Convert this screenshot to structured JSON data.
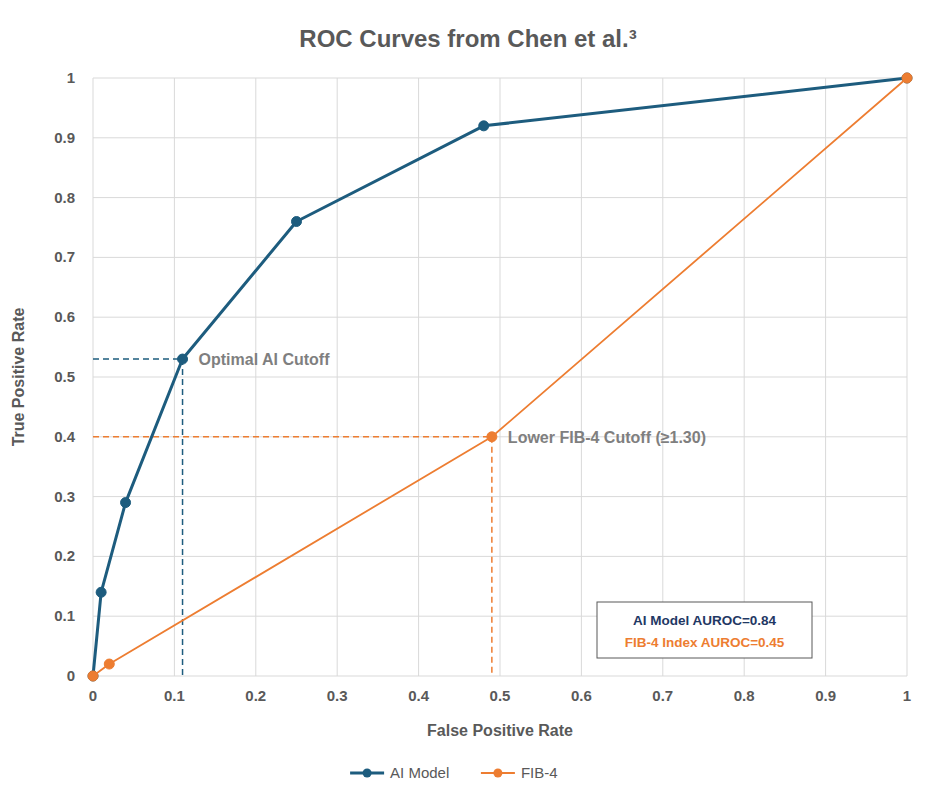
{
  "chart_data": {
    "type": "line",
    "title": "ROC Curves from Chen et al.³",
    "x_label": "False Positive Rate",
    "y_label": "True Positive Rate",
    "xlim": [
      0,
      1
    ],
    "ylim": [
      0,
      1
    ],
    "xticks": [
      0,
      0.1,
      0.2,
      0.3,
      0.4,
      0.5,
      0.6,
      0.7,
      0.8,
      0.9,
      1
    ],
    "yticks": [
      0,
      0.1,
      0.2,
      0.3,
      0.4,
      0.5,
      0.6,
      0.7,
      0.8,
      0.9,
      1
    ],
    "grid": true,
    "legend": "bottom",
    "series": [
      {
        "name": "AI Model",
        "color": "#1d5c7e",
        "marker": "circle",
        "x": [
          0,
          0.01,
          0.04,
          0.11,
          0.25,
          0.48,
          1
        ],
        "values": [
          0,
          0.14,
          0.29,
          0.53,
          0.76,
          0.92,
          1
        ]
      },
      {
        "name": "FIB-4",
        "color": "#ed7d31",
        "marker": "circle",
        "x": [
          0,
          0.02,
          0.49,
          1
        ],
        "values": [
          0,
          0.02,
          0.4,
          1
        ]
      }
    ],
    "annotations": [
      {
        "text": "Optimal AI Cutoff",
        "x": 0.11,
        "y": 0.53,
        "color": "#1d5c7e",
        "line_style": "dashed"
      },
      {
        "text": "Lower FIB-4 Cutoff (≥1.30)",
        "x": 0.49,
        "y": 0.4,
        "color": "#ed7d31",
        "line_style": "dashed"
      }
    ],
    "notes": [
      {
        "text": "AI Model AUROC=0.84",
        "color": "#1f3864"
      },
      {
        "text": "FIB-4 Index AUROC=0.45",
        "color": "#ed7d31"
      }
    ]
  }
}
